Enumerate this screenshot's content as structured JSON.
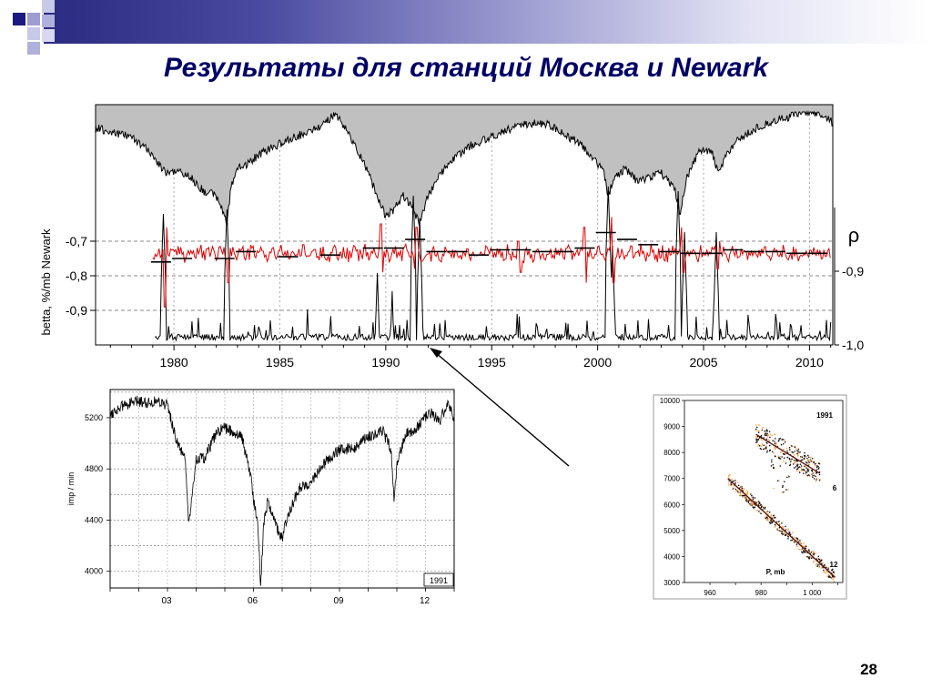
{
  "slide": {
    "title": "Результаты для станций Москва и Newark",
    "page_number": "28"
  },
  "chart_data": [
    {
      "type": "line",
      "ylabel": "betta, %/mb  Newark",
      "y2label": "ρ",
      "x_ticks": [
        "1980",
        "1985",
        "1990",
        "1995",
        "2000",
        "2005",
        "2010"
      ],
      "y_ticks": [
        "-0,7",
        "-0,8",
        "-0,9"
      ],
      "y2_ticks": [
        "-0,9",
        "-1,0"
      ],
      "xlim": [
        1976.3,
        2011.1
      ],
      "ylim": [
        -1.0,
        -0.7
      ],
      "y2lim": [
        -1.0,
        -0.9
      ],
      "grid": true,
      "annual_beta": [
        {
          "year": 1979,
          "value": -0.76
        },
        {
          "year": 1980,
          "value": -0.75
        },
        {
          "year": 1982,
          "value": -0.75
        },
        {
          "year": 1983,
          "value": -0.73
        },
        {
          "year": 1985,
          "value": -0.745
        },
        {
          "year": 1987,
          "value": -0.74
        },
        {
          "year": 1989,
          "value": -0.72
        },
        {
          "year": 1990,
          "value": -0.72
        },
        {
          "year": 1991,
          "value": -0.695
        },
        {
          "year": 1992,
          "value": -0.73
        },
        {
          "year": 1993,
          "value": -0.73
        },
        {
          "year": 1994,
          "value": -0.74
        },
        {
          "year": 1995,
          "value": -0.725
        },
        {
          "year": 1996,
          "value": -0.725
        },
        {
          "year": 1997,
          "value": -0.73
        },
        {
          "year": 1998,
          "value": -0.73
        },
        {
          "year": 1999,
          "value": -0.72
        },
        {
          "year": 2000,
          "value": -0.675
        },
        {
          "year": 2001,
          "value": -0.695
        },
        {
          "year": 2002,
          "value": -0.71
        },
        {
          "year": 2003,
          "value": -0.73
        },
        {
          "year": 2004,
          "value": -0.735
        },
        {
          "year": 2005,
          "value": -0.735
        },
        {
          "year": 2006,
          "value": -0.725
        },
        {
          "year": 2007,
          "value": -0.73
        },
        {
          "year": 2008,
          "value": -0.73
        },
        {
          "year": 2009,
          "value": -0.735
        },
        {
          "year": 2010,
          "value": -0.735
        }
      ],
      "series": [
        {
          "role": "count-rate envelope (grey fill)",
          "color": "#c0c0c0"
        },
        {
          "role": "monthly betta",
          "color": "#e00000"
        },
        {
          "role": "ρ",
          "color": "#000000"
        }
      ]
    },
    {
      "type": "line",
      "ylabel": "imp / min",
      "x_ticks": [
        "03",
        "06",
        "09",
        "12"
      ],
      "y_ticks": [
        "4000",
        "4400",
        "4800",
        "5200"
      ],
      "ylim": [
        3870,
        5420
      ],
      "label_box": "1991",
      "grid": true
    },
    {
      "type": "scatter",
      "xlabel": "P, mb",
      "x_ticks": [
        "960",
        "980",
        "1 000"
      ],
      "y_ticks": [
        "3000",
        "4000",
        "5000",
        "6000",
        "7000",
        "8000",
        "9000",
        "10000"
      ],
      "xlim": [
        950,
        1012
      ],
      "ylim": [
        3000,
        10000
      ],
      "annotations": [
        "1991",
        "6",
        "12"
      ],
      "clusters": [
        {
          "label": "6",
          "p_range": [
            978,
            1003
          ],
          "value_at_start": 8700,
          "value_at_end": 7200
        },
        {
          "label": "12",
          "p_range": [
            967,
            1009
          ],
          "value_at_start": 7000,
          "value_at_end": 3200
        }
      ]
    }
  ],
  "colors": {
    "title": "#000066",
    "accent_dark": "#1a1a80",
    "accent_light": "#b0b0dd",
    "beta_red": "#e00000",
    "fill_grey": "#c0c0c0",
    "fit_orange": "#f5a040",
    "fit_line": "#5a1010"
  },
  "icons": {
    "header_decor": "squares-decor-icon",
    "pointer": "arrow-icon"
  }
}
